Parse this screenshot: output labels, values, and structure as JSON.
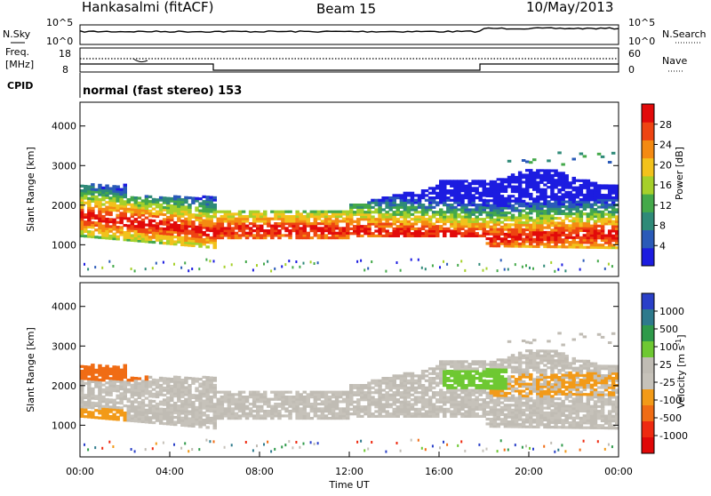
{
  "header": {
    "station": "Hankasalmi (fitACF)",
    "beam": "Beam 15",
    "date": "10/May/2013"
  },
  "noise_panel": {
    "left_label": "N.Sky",
    "right_label": "N.Search",
    "left_ticks": [
      "10^5",
      "10^0"
    ],
    "right_ticks": [
      "10^5",
      "10^0"
    ]
  },
  "freq_panel": {
    "left_label_1": "Freq.",
    "left_label_2": "[MHz]",
    "right_label": "Nave",
    "left_ticks": [
      "18",
      "8"
    ],
    "right_ticks": [
      "60",
      "0"
    ]
  },
  "cpid_panel": {
    "label": "CPID",
    "mode_text": "normal (fast stereo) 153"
  },
  "chart_data": [
    {
      "type": "heatmap",
      "name": "power",
      "ylabel": "Slant Range [km]",
      "ylim": [
        200,
        4600
      ],
      "yticks": [
        "1000",
        "2000",
        "3000",
        "4000"
      ],
      "colorbar_label": "Power [dB]",
      "colorbar_ticks": [
        "4",
        "8",
        "12",
        "16",
        "20",
        "24",
        "28"
      ],
      "colorbar_colors": [
        "#1c1ce0",
        "#2a5ab8",
        "#2f8a78",
        "#44a94a",
        "#a6d02a",
        "#f2c21c",
        "#f48a12",
        "#ee4412",
        "#e20a0a"
      ],
      "bands": [
        {
          "t": [
            0,
            6
          ],
          "r": [
            1200,
            2300
          ]
        },
        {
          "t": [
            6,
            12
          ],
          "r": [
            1150,
            1900
          ]
        },
        {
          "t": [
            12,
            18
          ],
          "r": [
            1150,
            2200
          ]
        },
        {
          "t": [
            18,
            24
          ],
          "r": [
            900,
            2600
          ]
        }
      ]
    },
    {
      "type": "heatmap",
      "name": "velocity",
      "ylabel": "Slant Range [km]",
      "ylim": [
        200,
        4600
      ],
      "yticks": [
        "1000",
        "2000",
        "3000",
        "4000"
      ],
      "colorbar_label": "Velocity [m s",
      "colorbar_label_sup": "-1",
      "colorbar_label_end": "]",
      "colorbar_ticks": [
        "1000",
        "500",
        "100",
        "25",
        "-25",
        "-100",
        "-500",
        "-1000"
      ],
      "colorbar_colors": [
        "#2a40c8",
        "#2e7a8c",
        "#2f9a4a",
        "#6ec832",
        "#c0bcb4",
        "#c6c2ba",
        "#f29a18",
        "#f06c14",
        "#ee2a10",
        "#e00808"
      ]
    }
  ],
  "x_axis": {
    "label": "Time UT",
    "xlim": [
      0,
      24
    ],
    "ticks": [
      "00:00",
      "04:00",
      "08:00",
      "12:00",
      "16:00",
      "20:00",
      "00:00"
    ]
  }
}
